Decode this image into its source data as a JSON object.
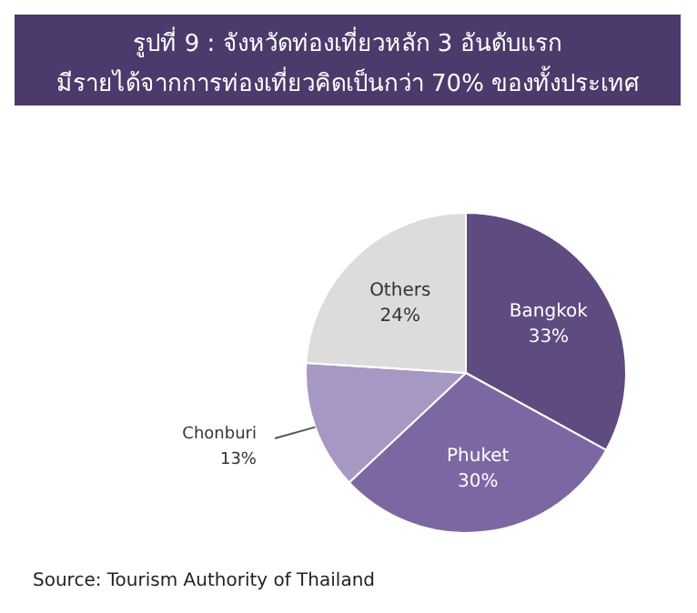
{
  "chart_data": {
    "type": "pie",
    "title": "รูปที่ 9 : จังหวัดท่องเที่ยวหลัก 3 อันดับแรก",
    "subtitle": "มีรายได้จากการท่องเที่ยวคิดเป็นกว่า 70% ของทั้งประเทศ",
    "categories": [
      "Bangkok",
      "Phuket",
      "Chonburi",
      "Others"
    ],
    "values": [
      33,
      30,
      13,
      24
    ],
    "colors": [
      "#5f4b80",
      "#7d67a3",
      "#a698c3",
      "#dcdcdc"
    ],
    "value_labels": [
      "33%",
      "30%",
      "13%",
      "24%"
    ],
    "annotations": [
      "Source: Tourism Authority of Thailand"
    ]
  }
}
